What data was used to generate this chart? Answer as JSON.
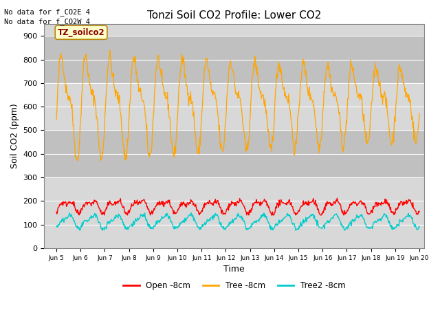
{
  "title": "Tonzi Soil CO2 Profile: Lower CO2",
  "xlabel": "Time",
  "ylabel": "Soil CO2 (ppm)",
  "ylim": [
    0,
    950
  ],
  "xlim": [
    4.5,
    20.2
  ],
  "background_color": "#ffffff",
  "annotation1": "No data for f_CO2E 4",
  "annotation2": "No data for f_CO2W 4",
  "legend_box_label": "TZ_soilco2",
  "series": {
    "open": {
      "label": "Open -8cm",
      "color": "#ff0000"
    },
    "tree": {
      "label": "Tree -8cm",
      "color": "#ffa500"
    },
    "tree2": {
      "label": "Tree2 -8cm",
      "color": "#00cccc"
    }
  },
  "xtick_positions": [
    5,
    6,
    7,
    8,
    9,
    10,
    11,
    12,
    13,
    14,
    15,
    16,
    17,
    18,
    19,
    20
  ],
  "xtick_labels": [
    "Jun 5",
    "Jun 6",
    "Jun 7",
    "Jun 8",
    "Jun 9",
    "Jun 10",
    "Jun 11",
    "Jun 12",
    "Jun 13",
    "Jun 14",
    "Jun 15",
    "Jun 16",
    "Jun 17",
    "Jun 18",
    "Jun 19",
    "Jun 20"
  ],
  "ytick_positions": [
    0,
    100,
    200,
    300,
    400,
    500,
    600,
    700,
    800,
    900
  ],
  "plot_bg": "#d8d8d8",
  "band1": [
    300,
    500
  ],
  "band2": [
    700,
    900
  ],
  "band_color": "#c0c0c0"
}
